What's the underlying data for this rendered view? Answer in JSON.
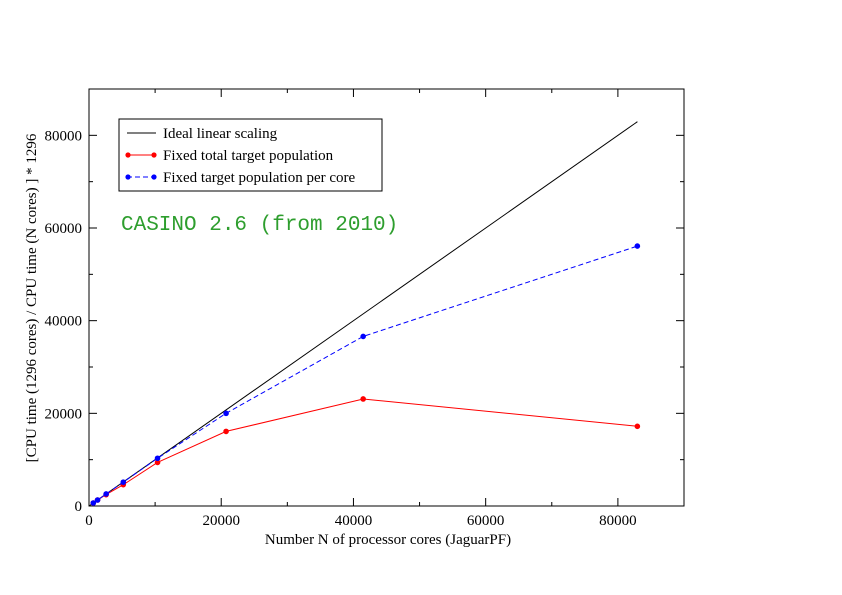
{
  "chart_data": {
    "type": "line",
    "title": "",
    "xlabel": "Number N of processor cores (JaguarPF)",
    "ylabel": "[CPU time (1296 cores) / CPU time (N cores) ] * 1296",
    "xlim": [
      0,
      90000
    ],
    "ylim": [
      0,
      90000
    ],
    "x_ticks": [
      0,
      20000,
      40000,
      60000,
      80000
    ],
    "y_ticks": [
      0,
      20000,
      40000,
      60000,
      80000
    ],
    "x_tick_labels": [
      "0",
      "20000",
      "40000",
      "60000",
      "80000"
    ],
    "y_tick_labels": [
      "0",
      "20000",
      "40000",
      "60000",
      "80000"
    ],
    "grid": false,
    "legend": "top-left",
    "annotation": {
      "text": "CASINO 2.6 (from 2010)",
      "color": "#2e9e2e"
    },
    "series": [
      {
        "name": "Ideal linear scaling",
        "color": "#000000",
        "dash": "solid",
        "marker": "none",
        "x": [
          0,
          82944
        ],
        "y": [
          0,
          82944
        ]
      },
      {
        "name": "Fixed total target population",
        "color": "#ff0000",
        "dash": "solid",
        "marker": "circle",
        "x": [
          648,
          1296,
          2592,
          5184,
          10368,
          20736,
          41472,
          82944
        ],
        "y": [
          650,
          1296,
          2450,
          4600,
          9400,
          16100,
          23100,
          17200
        ]
      },
      {
        "name": "Fixed target population per core",
        "color": "#0000ff",
        "dash": "dashed",
        "marker": "circle",
        "x": [
          648,
          1296,
          2592,
          5184,
          10368,
          20736,
          41472,
          82944
        ],
        "y": [
          650,
          1296,
          2600,
          5150,
          10300,
          20000,
          36600,
          56100
        ]
      }
    ]
  }
}
